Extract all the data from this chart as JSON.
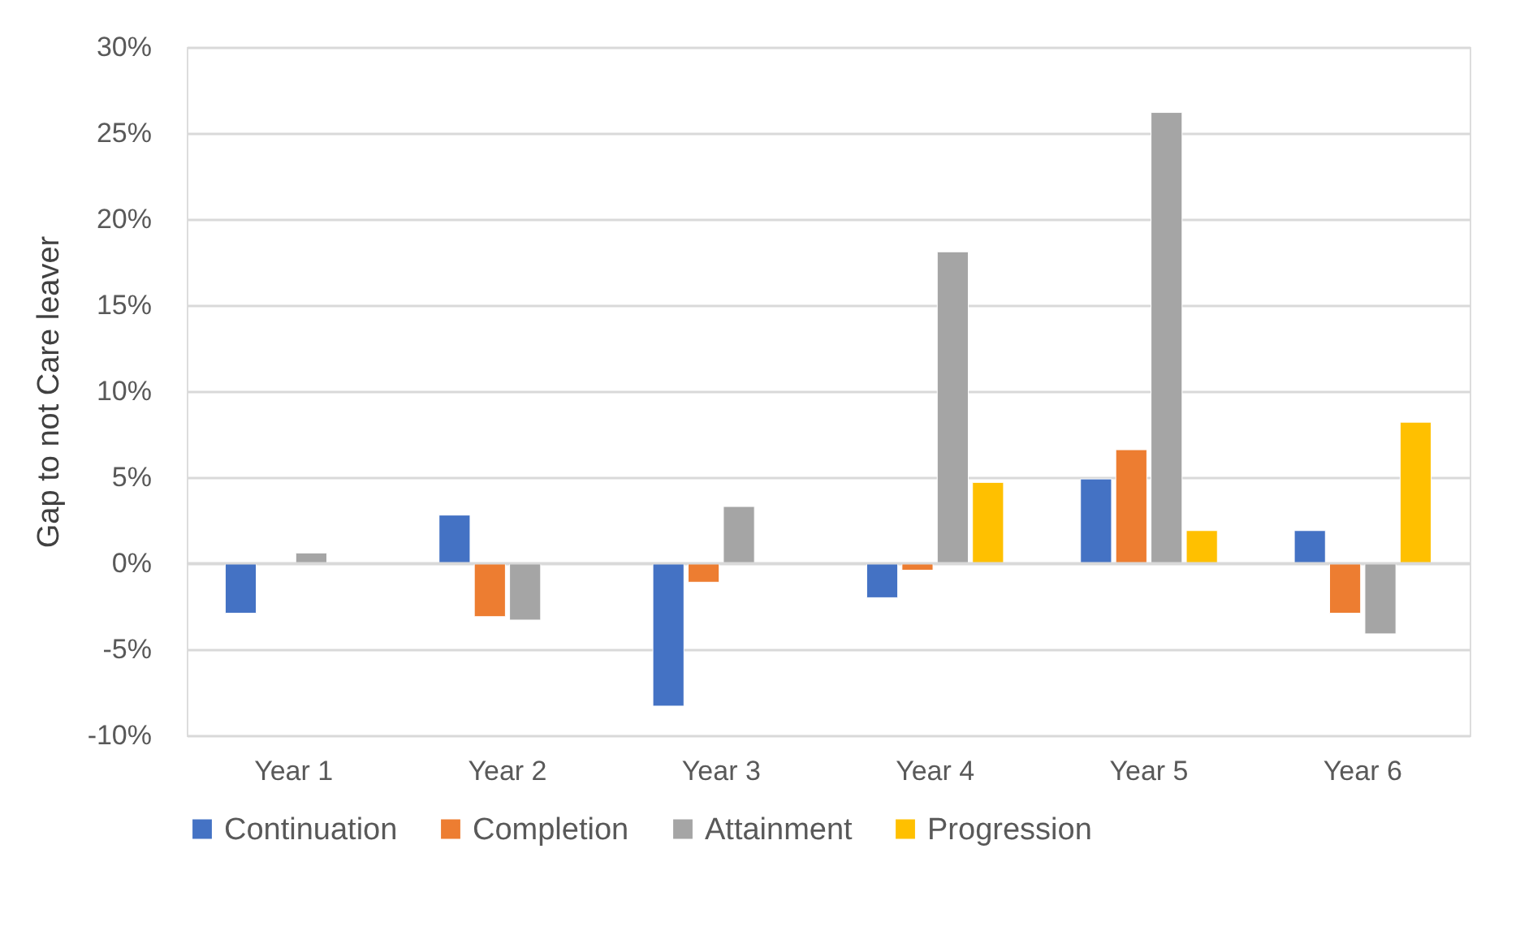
{
  "chart_data": {
    "type": "bar",
    "ylabel": "Gap to not Care leaver",
    "categories": [
      "Year 1",
      "Year 2",
      "Year 3",
      "Year 4",
      "Year 5",
      "Year 6"
    ],
    "series": [
      {
        "name": "Continuation",
        "color": "#4472c4",
        "values": [
          -2.9,
          2.8,
          -8.3,
          -2.0,
          4.9,
          1.9
        ]
      },
      {
        "name": "Completion",
        "color": "#ed7d31",
        "values": [
          null,
          -3.1,
          -1.1,
          -0.4,
          6.6,
          -2.9
        ]
      },
      {
        "name": "Attainment",
        "color": "#a5a5a5",
        "values": [
          0.6,
          -3.3,
          3.3,
          18.1,
          26.2,
          -4.1
        ]
      },
      {
        "name": "Progression",
        "color": "#ffc000",
        "values": [
          null,
          null,
          null,
          4.7,
          1.9,
          8.2
        ]
      }
    ],
    "ylim": [
      -10,
      30
    ],
    "yticks": [
      {
        "value": -10,
        "label": "-10%"
      },
      {
        "value": -5,
        "label": "-5%"
      },
      {
        "value": 0,
        "label": "0%"
      },
      {
        "value": 5,
        "label": "5%"
      },
      {
        "value": 10,
        "label": "10%"
      },
      {
        "value": 15,
        "label": "15%"
      },
      {
        "value": 20,
        "label": "20%"
      },
      {
        "value": 25,
        "label": "25%"
      },
      {
        "value": 30,
        "label": "30%"
      }
    ],
    "grid": "y",
    "legend": "bottom"
  }
}
